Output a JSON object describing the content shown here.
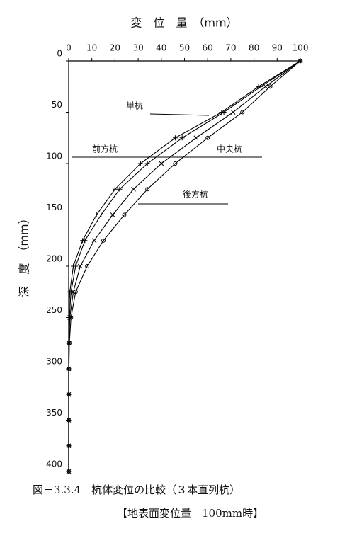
{
  "chart_data": {
    "type": "line",
    "x_label": "変　位　量　（mm）",
    "y_label": "深　度　（mm）",
    "depth": [
      0,
      25,
      50,
      75,
      100,
      125,
      150,
      175,
      200,
      225,
      250,
      275,
      300,
      325,
      350,
      375,
      400
    ],
    "xlim": [
      0,
      100
    ],
    "xticks": [
      0,
      10,
      20,
      30,
      40,
      50,
      60,
      70,
      80,
      90,
      100
    ],
    "ylim": [
      0,
      400
    ],
    "yticks": [
      0,
      50,
      100,
      150,
      200,
      250,
      300,
      350,
      400
    ],
    "series": [
      {
        "name": "単杭",
        "color": "#000000",
        "marker": "plus",
        "values": [
          100,
          82,
          66,
          46,
          31,
          20,
          12,
          6,
          2,
          0.5,
          0,
          0,
          0,
          0,
          0,
          0,
          0
        ]
      },
      {
        "name": "前方杭",
        "color": "#000000",
        "marker": "plus",
        "values": [
          100,
          83,
          67,
          49,
          34,
          22,
          14,
          7,
          3,
          1,
          0.3,
          0,
          0,
          0,
          0,
          0,
          0
        ]
      },
      {
        "name": "中央杭",
        "color": "#000000",
        "marker": "cross",
        "values": [
          100,
          85,
          71,
          55,
          40,
          28,
          19,
          11,
          5,
          2,
          0.5,
          0.2,
          0,
          0,
          0,
          0,
          0
        ]
      },
      {
        "name": "後方杭",
        "color": "#000000",
        "marker": "circle",
        "values": [
          100,
          87,
          75,
          60,
          46,
          34,
          24,
          15,
          8,
          3,
          1,
          0.3,
          0.1,
          0,
          0,
          0,
          0
        ]
      }
    ],
    "caption": [
      "図－3.3.4　杭体変位の比較（３本直列杭）",
      "【地表面変位量　100mm時】"
    ]
  }
}
